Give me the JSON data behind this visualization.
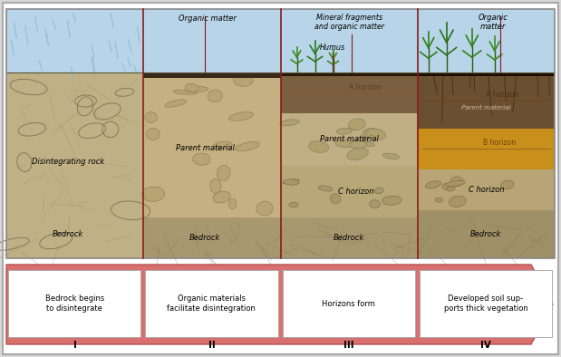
{
  "fig_width": 6.19,
  "fig_height": 3.94,
  "dpi": 100,
  "divider_color": "#8b1a1a",
  "arrow_color": "#d97070",
  "sky_color": "#b8d4e8",
  "rain_color": "#8ab8d0",
  "panel_labels": [
    "I",
    "II",
    "III",
    "IV"
  ],
  "step_labels": [
    "Bedrock begins\nto disintegrate",
    "Organic materials\nfacilitate disintegration",
    "Horizons form",
    "Developed soil sup-\nports thick vegetation"
  ],
  "soil_base": "#c2b08a",
  "soil_mid": "#b8a47c",
  "bedrock_color": "#a09070",
  "dark_topsoil": "#3a2a10",
  "a_horizon_color": "#7a6040",
  "b_horizon_color": "#c8902a",
  "c_horizon_color": "#b8a47c",
  "rock_fill": "#b0a078",
  "rock_edge": "#808060"
}
